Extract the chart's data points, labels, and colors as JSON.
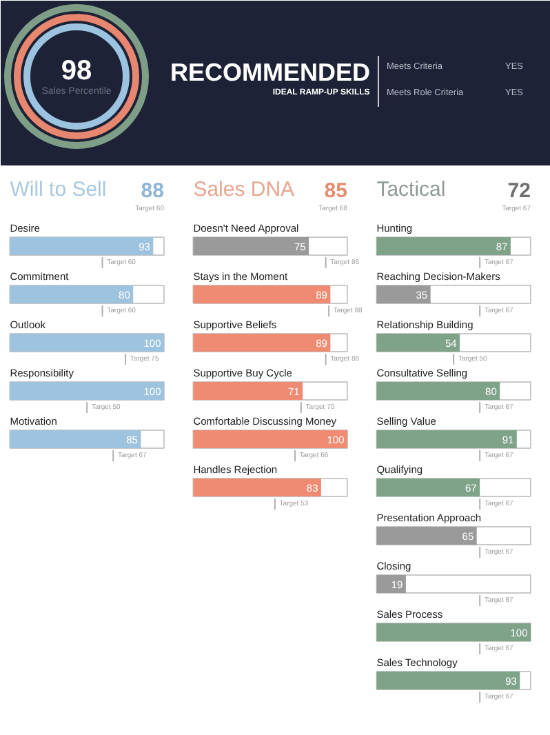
{
  "chart_data": [
    {
      "type": "other",
      "title": "RECOMMENDED",
      "subtitle": "IDEAL RAMP-UP SKILLS",
      "annotations": [
        "98",
        "Sales Percentile",
        "Meets Criteria",
        "YES",
        "Meets Role Criteria",
        "YES"
      ]
    },
    {
      "type": "bar",
      "orientation": "horizontal",
      "title": "Will to Sell",
      "categories": [
        "Desire",
        "Commitment",
        "Outlook",
        "Responsibility",
        "Motivation"
      ],
      "values": [
        93,
        80,
        100,
        100,
        85
      ],
      "colors": [
        "#9dc3de",
        "#9dc3de",
        "#9dc3de",
        "#9dc3de",
        "#9dc3de"
      ],
      "xlim": [
        0,
        100
      ],
      "data_labels": true,
      "annotations": [
        "88",
        "Target 60",
        "Target 60",
        "Target 60",
        "Target 75",
        "Target 50",
        "Target 67"
      ]
    },
    {
      "type": "bar",
      "orientation": "horizontal",
      "title": "Sales DNA",
      "categories": [
        "Doesn't Need Approval",
        "Stays in the Moment",
        "Supportive Beliefs",
        "Supportive Buy Cycle",
        "Comfortable Discussing Money",
        "Handles Rejection"
      ],
      "values": [
        75,
        89,
        89,
        71,
        100,
        83
      ],
      "colors": [
        "#9a9a9a",
        "#ee8b72",
        "#ee8b72",
        "#ee8b72",
        "#ee8b72",
        "#ee8b72"
      ],
      "xlim": [
        0,
        100
      ],
      "data_labels": true,
      "annotations": [
        "85",
        "Target 68",
        "Target 86",
        "Target 88",
        "Target 86",
        "Target 70",
        "Target 66",
        "Target 53"
      ]
    },
    {
      "type": "bar",
      "orientation": "horizontal",
      "title": "Tactical",
      "categories": [
        "Hunting",
        "Reaching Decision-Makers",
        "Relationship Building",
        "Consultative Selling",
        "Selling Value",
        "Qualifying",
        "Presentation Approach",
        "Closing",
        "Sales Process",
        "Sales Technology"
      ],
      "values": [
        87,
        35,
        54,
        80,
        91,
        67,
        65,
        19,
        100,
        93
      ],
      "colors": [
        "#7fa389",
        "#9a9a9a",
        "#7fa389",
        "#7fa389",
        "#7fa389",
        "#7fa389",
        "#9a9a9a",
        "#9a9a9a",
        "#7fa389",
        "#7fa389"
      ],
      "xlim": [
        0,
        100
      ],
      "data_labels": true,
      "annotations": [
        "72",
        "Target 67",
        "Target 67",
        "Target 67",
        "Target 50",
        "Target 67",
        "Target 67",
        "Target 67",
        "Target 67",
        "Target 67",
        "Target 67",
        "Target 67"
      ]
    }
  ]
}
